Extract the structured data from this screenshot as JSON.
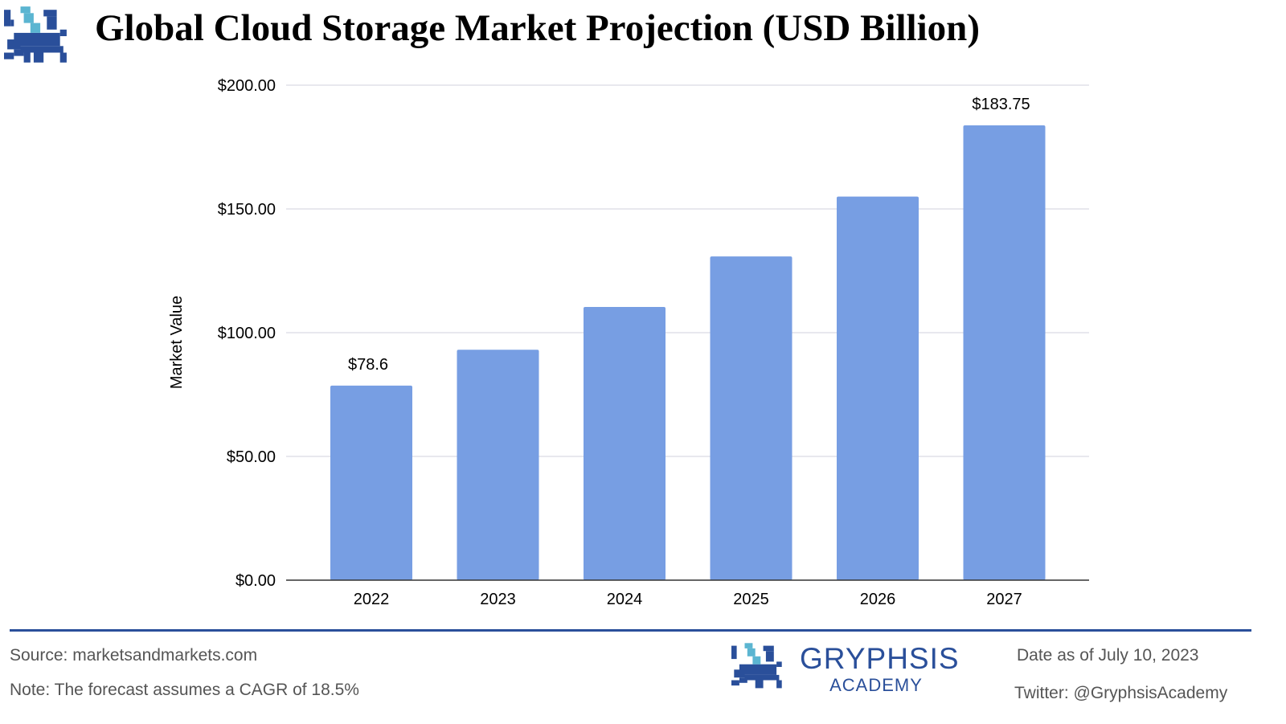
{
  "header": {
    "title": "Global Cloud Storage Market Projection (USD Billion)"
  },
  "chart_data": {
    "type": "bar",
    "title": "Global Cloud Storage Market Projection (USD Billion)",
    "categories": [
      "2022",
      "2023",
      "2024",
      "2025",
      "2026",
      "2027"
    ],
    "values": [
      78.6,
      93.1,
      110.4,
      130.8,
      155.0,
      183.75
    ],
    "data_labels": [
      "$78.6",
      "",
      "",
      "",
      "",
      "$183.75"
    ],
    "xlabel": "",
    "ylabel": "Market Value",
    "ylim": [
      0,
      200
    ],
    "yticks": [
      0,
      50,
      100,
      150,
      200
    ],
    "ytick_labels": [
      "$0.00",
      "$50.00",
      "$100.00",
      "$150.00",
      "$200.00"
    ],
    "grid": true,
    "bar_color": "#779ee3"
  },
  "footer": {
    "source": "Source: marketsandmarkets.com",
    "note": "Note: The forecast assumes a CAGR of 18.5%",
    "brand_name": "GRYPHSIS",
    "brand_sub": "ACADEMY",
    "date": "Date as of July 10, 2023",
    "twitter": "Twitter: @GryphsisAcademy"
  },
  "colors": {
    "accent": "#2a4f9a",
    "logo_light": "#5bb5d1"
  }
}
